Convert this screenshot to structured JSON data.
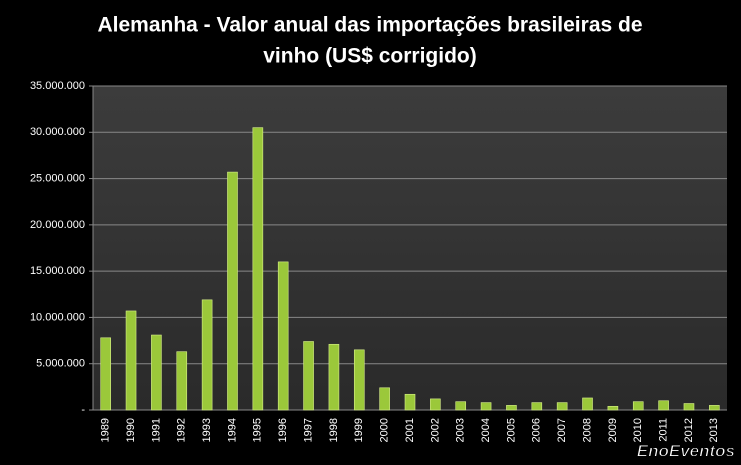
{
  "chart_data": {
    "type": "bar",
    "title": [
      "Alemanha - Valor anual das importações  brasileiras de",
      "vinho (US$ corrigido)"
    ],
    "categories": [
      "1989",
      "1990",
      "1991",
      "1992",
      "1993",
      "1994",
      "1995",
      "1996",
      "1997",
      "1998",
      "1999",
      "2000",
      "2001",
      "2002",
      "2003",
      "2004",
      "2005",
      "2006",
      "2007",
      "2008",
      "2009",
      "2010",
      "2011",
      "2012",
      "2013"
    ],
    "values": [
      7800000,
      10700000,
      8100000,
      6300000,
      11900000,
      25700000,
      30500000,
      16000000,
      7400000,
      7100000,
      6500000,
      2400000,
      1700000,
      1200000,
      900000,
      800000,
      500000,
      800000,
      800000,
      1300000,
      400000,
      900000,
      1000000,
      700000,
      500000
    ],
    "color": "#9bc83a",
    "ylim": [
      0,
      35000000
    ],
    "yticks": [
      {
        "value": 0,
        "label": "-"
      },
      {
        "value": 5000000,
        "label": "5.000.000"
      },
      {
        "value": 10000000,
        "label": "10.000.000"
      },
      {
        "value": 15000000,
        "label": "15.000.000"
      },
      {
        "value": 20000000,
        "label": "20.000.000"
      },
      {
        "value": 25000000,
        "label": "25.000.000"
      },
      {
        "value": 30000000,
        "label": "30.000.000"
      },
      {
        "value": 35000000,
        "label": "35.000.000"
      }
    ],
    "grid": true,
    "watermark": "EnoEventos"
  }
}
